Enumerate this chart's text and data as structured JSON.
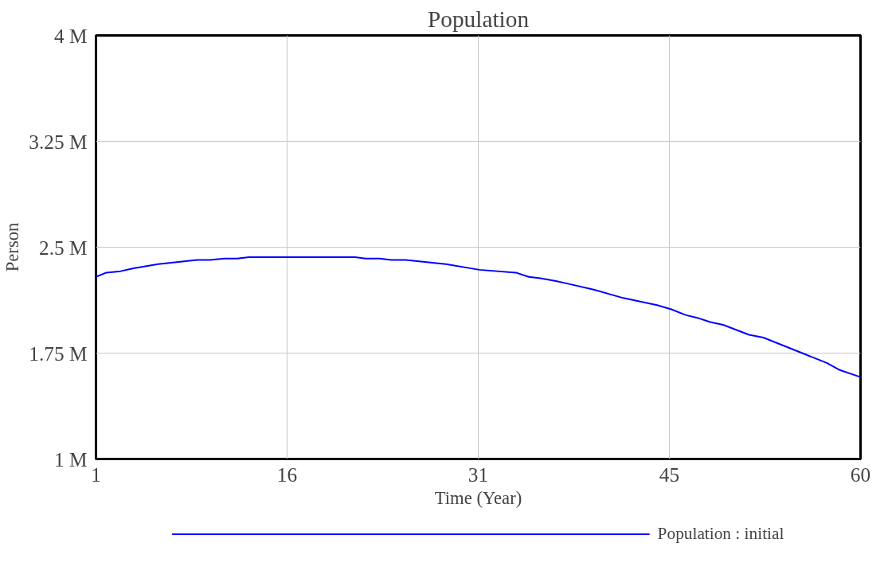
{
  "chart_data": {
    "type": "line",
    "title": "Population",
    "xlabel": "Time (Year)",
    "ylabel": "Person",
    "xlim": [
      1,
      60
    ],
    "xticks": [
      1,
      {
        "value": 15.75,
        "label": "16"
      },
      {
        "value": 30.5,
        "label": "31"
      },
      {
        "value": 45.25,
        "label": "45"
      },
      60
    ],
    "ylim": [
      1000000,
      4000000
    ],
    "yticks": [
      {
        "value": 1000000,
        "label": "1 M"
      },
      {
        "value": 1750000,
        "label": "1.75 M"
      },
      {
        "value": 2500000,
        "label": "2.5 M"
      },
      {
        "value": 3250000,
        "label": "3.25 M"
      },
      {
        "value": 4000000,
        "label": "4 M"
      }
    ],
    "grid": true,
    "legend": "bottom",
    "line_style": "solid",
    "series": [
      {
        "name": "Population : initial",
        "color": "#0000ff",
        "x": [
          1,
          1.8,
          2.9,
          3.9,
          5.8,
          8.8,
          9.8,
          10.9,
          11.9,
          12.8,
          21,
          21.8,
          22.9,
          23.8,
          24.9,
          28,
          30.6,
          33.4,
          34.4,
          35.3,
          36.5,
          37.5,
          39.4,
          41.7,
          44.3,
          45.4,
          46.5,
          47.4,
          48.4,
          49.4,
          51.4,
          52.5,
          55.5,
          57.4,
          58.4,
          60
        ],
        "values": [
          2290000,
          2320000,
          2330000,
          2350000,
          2380000,
          2410000,
          2410000,
          2420000,
          2420000,
          2430000,
          2430000,
          2420000,
          2420000,
          2410000,
          2410000,
          2380000,
          2340000,
          2320000,
          2290000,
          2280000,
          2260000,
          2240000,
          2200000,
          2140000,
          2090000,
          2060000,
          2020000,
          2000000,
          1970000,
          1950000,
          1880000,
          1860000,
          1750000,
          1680000,
          1630000,
          1580000
        ]
      }
    ]
  }
}
